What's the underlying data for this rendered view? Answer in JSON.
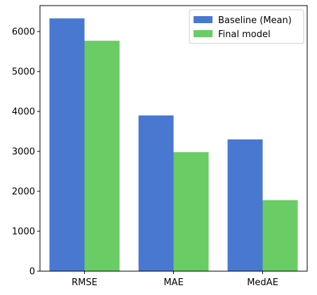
{
  "chart_data": {
    "type": "bar",
    "title": "",
    "xlabel": "",
    "ylabel": "",
    "categories": [
      "RMSE",
      "MAE",
      "MedAE"
    ],
    "series": [
      {
        "name": "Baseline (Mean)",
        "color": "#4878d0",
        "values": [
          6330,
          3900,
          3300
        ]
      },
      {
        "name": "Final model",
        "color": "#6acc64",
        "values": [
          5770,
          2980,
          1780
        ]
      }
    ],
    "ylim": [
      0,
      6650
    ],
    "yticks": [
      0,
      1000,
      2000,
      3000,
      4000,
      5000,
      6000
    ],
    "grid": false,
    "legend_position": "top-right"
  }
}
